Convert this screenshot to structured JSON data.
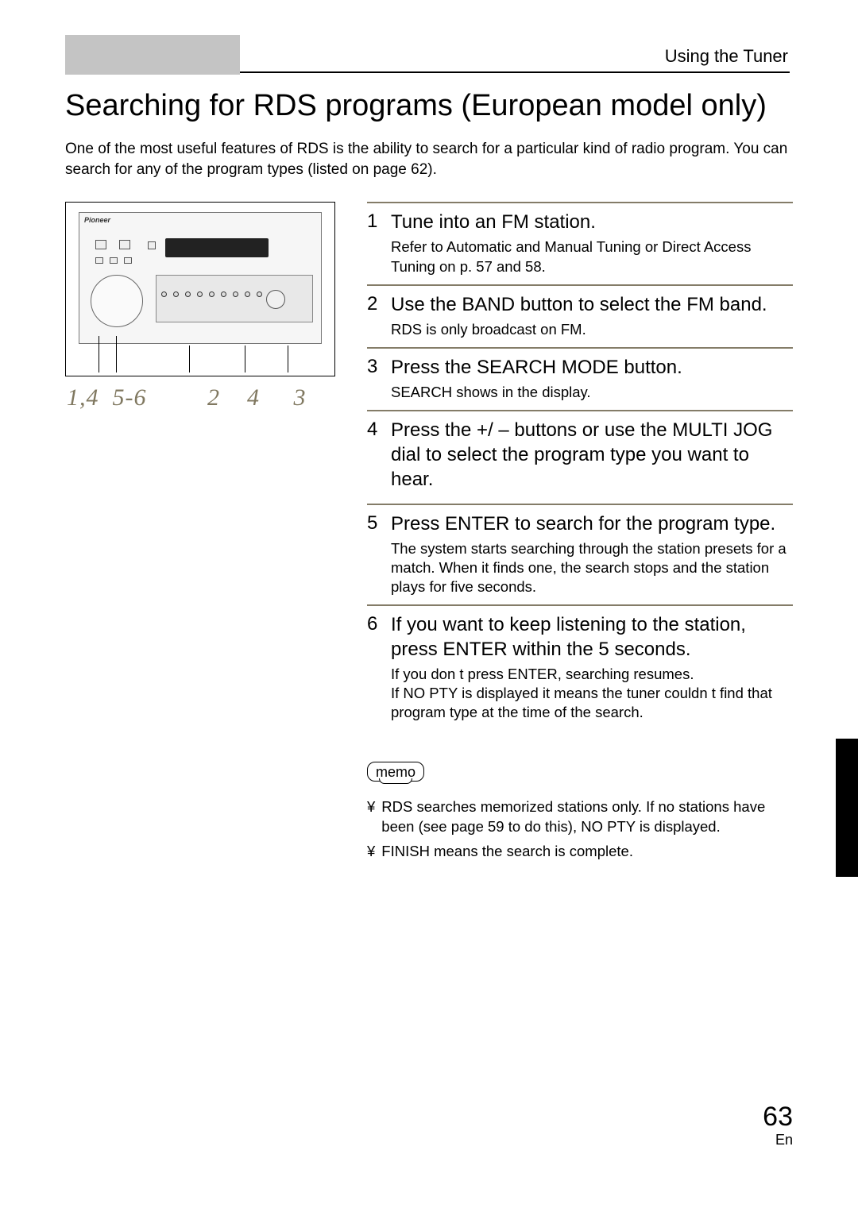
{
  "colors": {
    "header_tab_bg": "#c4c4c4",
    "rule_color": "#847c68",
    "italic_num_color": "#807860",
    "side_tab_bg": "#000000",
    "text_color": "#000000",
    "page_bg": "#ffffff"
  },
  "header": {
    "breadcrumb": "Using the Tuner"
  },
  "title": "Searching for RDS programs (European model only)",
  "intro": "One of the most useful features of RDS is the ability to search for a particular kind of radio program. You can search for any of the program types (listed on page 62).",
  "figure": {
    "callout_labels": "1,4  5-6         2    4     3"
  },
  "steps": [
    {
      "num": "1",
      "title": "Tune into an FM station.",
      "note": "Refer to  Automatic and Manual Tuning  or  Direct Access Tuning  on p. 57 and 58."
    },
    {
      "num": "2",
      "title": "Use the BAND button to select the FM band.",
      "note": "RDS is only broadcast on FM."
    },
    {
      "num": "3",
      "title": "Press the SEARCH MODE button.",
      "note": "SEARCH shows in the display."
    },
    {
      "num": "4",
      "title": "Press the +/ – buttons or use the MULTI JOG dial to select the program type you want to hear.",
      "note": ""
    },
    {
      "num": "5",
      "title": "Press ENTER to search for the program type.",
      "note": "The system starts searching through the station presets for a match. When it finds one, the search stops and the station plays for five seconds."
    },
    {
      "num": "6",
      "title": "If you want to keep listening to the station, press ENTER within the 5 seconds.",
      "note": "If you don t press ENTER, searching resumes.\nIf NO PTY is displayed it means the tuner couldn t find that program type at the time of the search."
    }
  ],
  "memo": {
    "label": "memo",
    "bullet": "¥",
    "items": [
      "RDS searches memorized stations only. If no stations have been (see page 59 to do this), NO PTY is displayed.",
      "FINISH means the search is complete."
    ]
  },
  "footer": {
    "page_num": "63",
    "lang": "En"
  }
}
